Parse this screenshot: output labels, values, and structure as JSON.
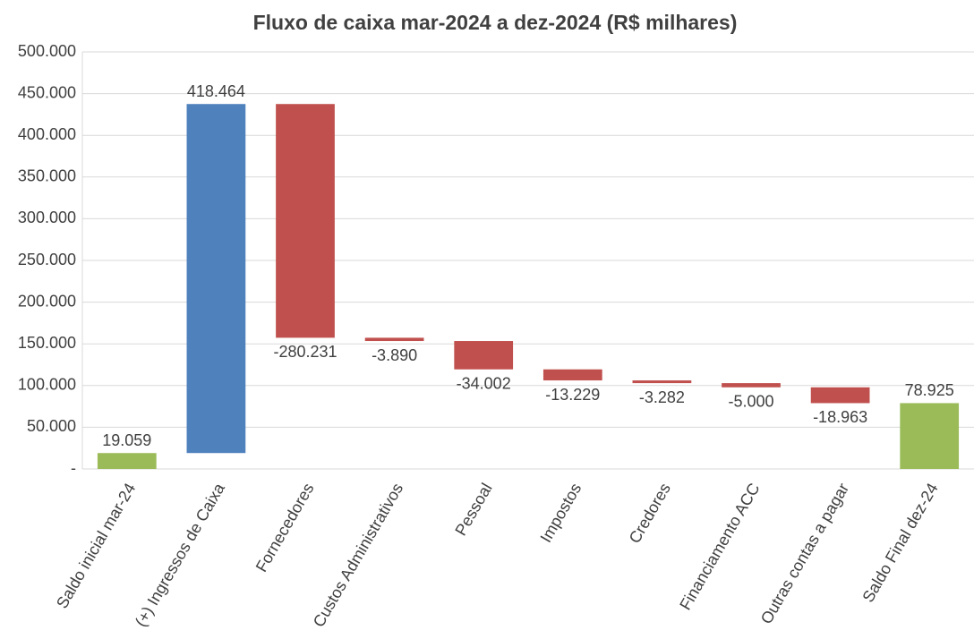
{
  "chart_data": {
    "type": "waterfall",
    "title": "Fluxo de caixa mar-2024 a dez-2024 (R$ milhares)",
    "categories": [
      "Saldo inicial mar-24",
      "(+) Ingressos de Caixa",
      "Fornecedores",
      "Custos Administrativos",
      "Pessoal",
      "Impostos",
      "Credores",
      "Financiamento ACC",
      "Outras contas a pagar",
      "Saldo Final dez-24"
    ],
    "values": [
      19059,
      418464,
      -280231,
      -3890,
      -34002,
      -13229,
      -3282,
      -5000,
      -18963,
      78925
    ],
    "value_labels": [
      "19.059",
      "418.464",
      "-280.231",
      "-3.890",
      "-34.002",
      "-13.229",
      "-3.282",
      "-5.000",
      "-18.963",
      "78.925"
    ],
    "colors": [
      "#9bbb59",
      "#4f81bd",
      "#c0504d",
      "#c0504d",
      "#c0504d",
      "#c0504d",
      "#c0504d",
      "#c0504d",
      "#c0504d",
      "#9bbb59"
    ],
    "totals": [
      0,
      9
    ],
    "ylim": [
      0,
      500000
    ],
    "yticks": [
      {
        "value": 0,
        "label": "-"
      },
      {
        "value": 50000,
        "label": "50.000"
      },
      {
        "value": 100000,
        "label": "100.000"
      },
      {
        "value": 150000,
        "label": "150.000"
      },
      {
        "value": 200000,
        "label": "200.000"
      },
      {
        "value": 250000,
        "label": "250.000"
      },
      {
        "value": 300000,
        "label": "300.000"
      },
      {
        "value": 350000,
        "label": "350.000"
      },
      {
        "value": 400000,
        "label": "400.000"
      },
      {
        "value": 450000,
        "label": "450.000"
      },
      {
        "value": 500000,
        "label": "500.000"
      }
    ],
    "grid": true
  }
}
